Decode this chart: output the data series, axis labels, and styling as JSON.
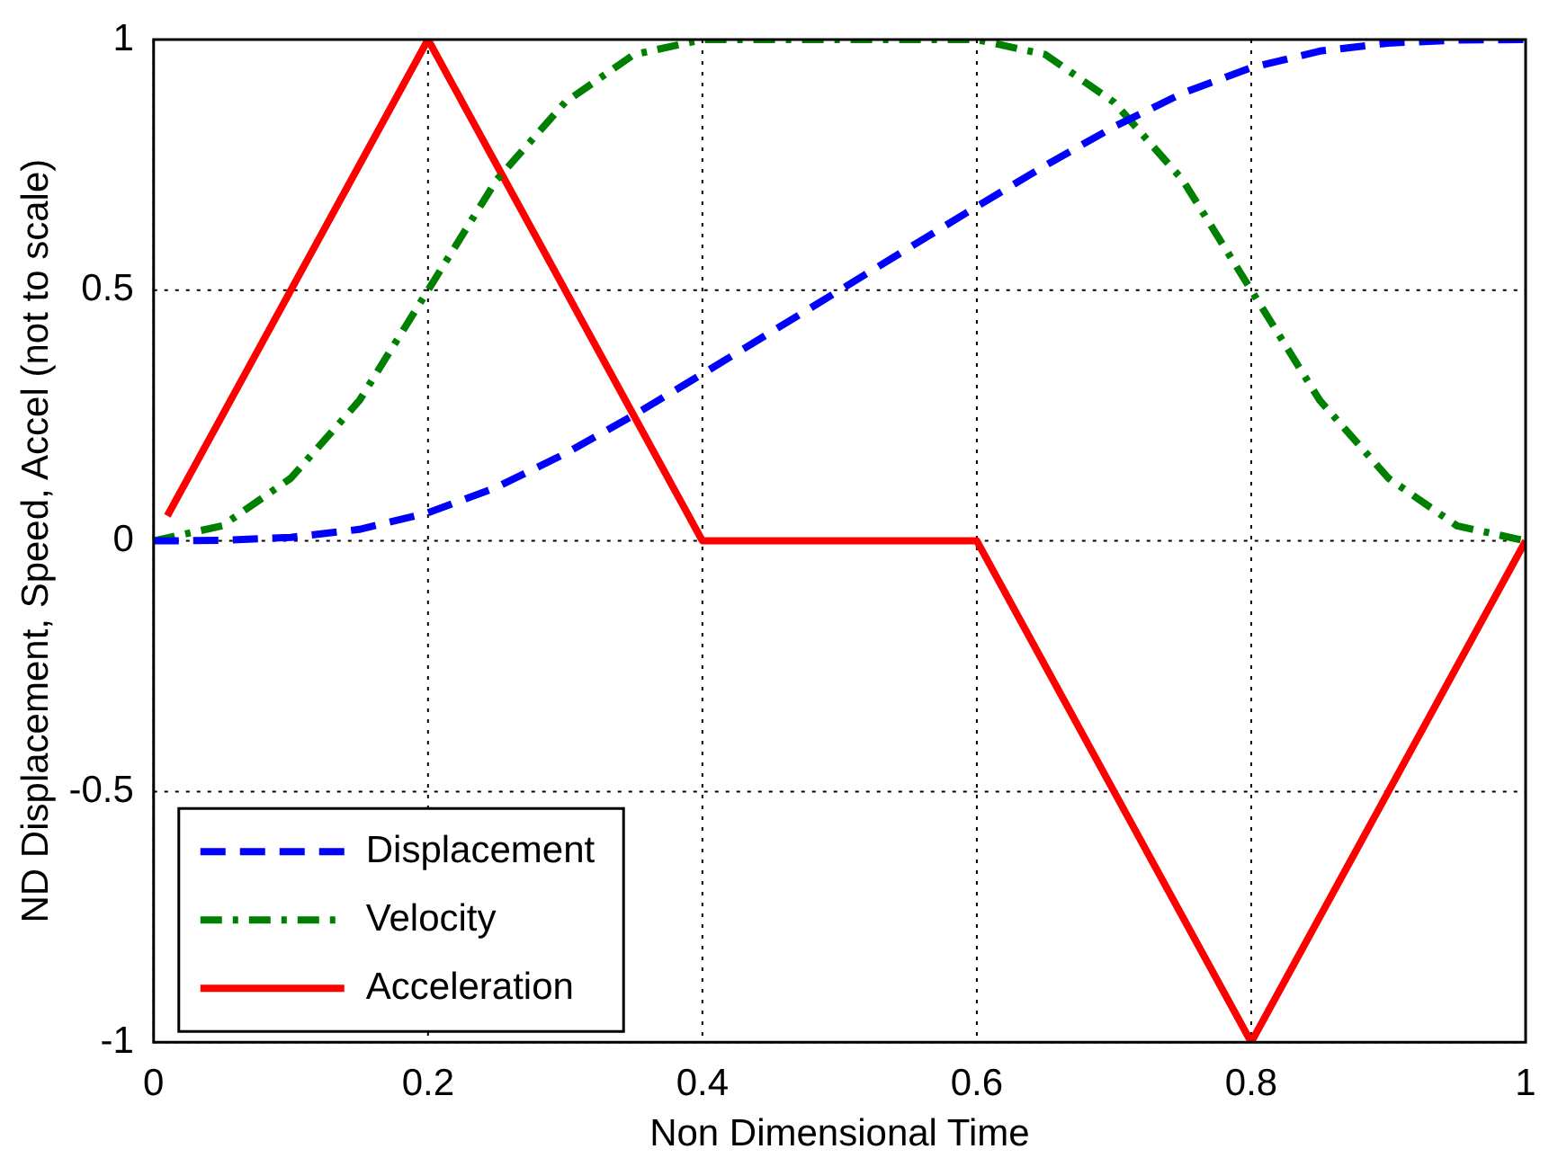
{
  "chart_data": {
    "type": "line",
    "xlabel": "Non Dimensional Time",
    "ylabel": "ND Displacement, Speed, Accel (not to scale)",
    "xlim": [
      0,
      1
    ],
    "ylim": [
      -1,
      1
    ],
    "xticks": [
      0,
      0.2,
      0.4,
      0.6,
      0.8,
      1
    ],
    "yticks": [
      -1,
      -0.5,
      0,
      0.5,
      1
    ],
    "grid": true,
    "legend": "bottom left",
    "marker": "none",
    "series": [
      {
        "name": "Displacement",
        "color": "#0000ff",
        "line_style": "dashed",
        "x": [
          0,
          0.05,
          0.1,
          0.15,
          0.2,
          0.25,
          0.3,
          0.35,
          0.4,
          0.5,
          0.6,
          0.65,
          0.7,
          0.75,
          0.8,
          0.85,
          0.9,
          0.95,
          1
        ],
        "values": [
          0,
          0.001,
          0.007,
          0.023,
          0.056,
          0.107,
          0.174,
          0.251,
          0.333,
          0.5,
          0.667,
          0.749,
          0.826,
          0.893,
          0.944,
          0.977,
          0.993,
          0.999,
          1
        ]
      },
      {
        "name": "Velocity",
        "color": "#008000",
        "line_style": "dashdot",
        "x": [
          0,
          0.05,
          0.1,
          0.15,
          0.2,
          0.25,
          0.3,
          0.35,
          0.4,
          0.6,
          0.65,
          0.7,
          0.75,
          0.8,
          0.85,
          0.9,
          0.95,
          1
        ],
        "values": [
          0,
          0.03,
          0.125,
          0.28,
          0.5,
          0.72,
          0.875,
          0.97,
          1,
          1,
          0.97,
          0.875,
          0.72,
          0.5,
          0.28,
          0.125,
          0.03,
          0
        ]
      },
      {
        "name": "Acceleration",
        "color": "#ff0000",
        "line_style": "solid",
        "x": [
          0.01,
          0.2,
          0.4,
          0.6,
          0.8,
          1
        ],
        "values": [
          0.05,
          1,
          0,
          0,
          -1,
          0
        ]
      }
    ]
  }
}
